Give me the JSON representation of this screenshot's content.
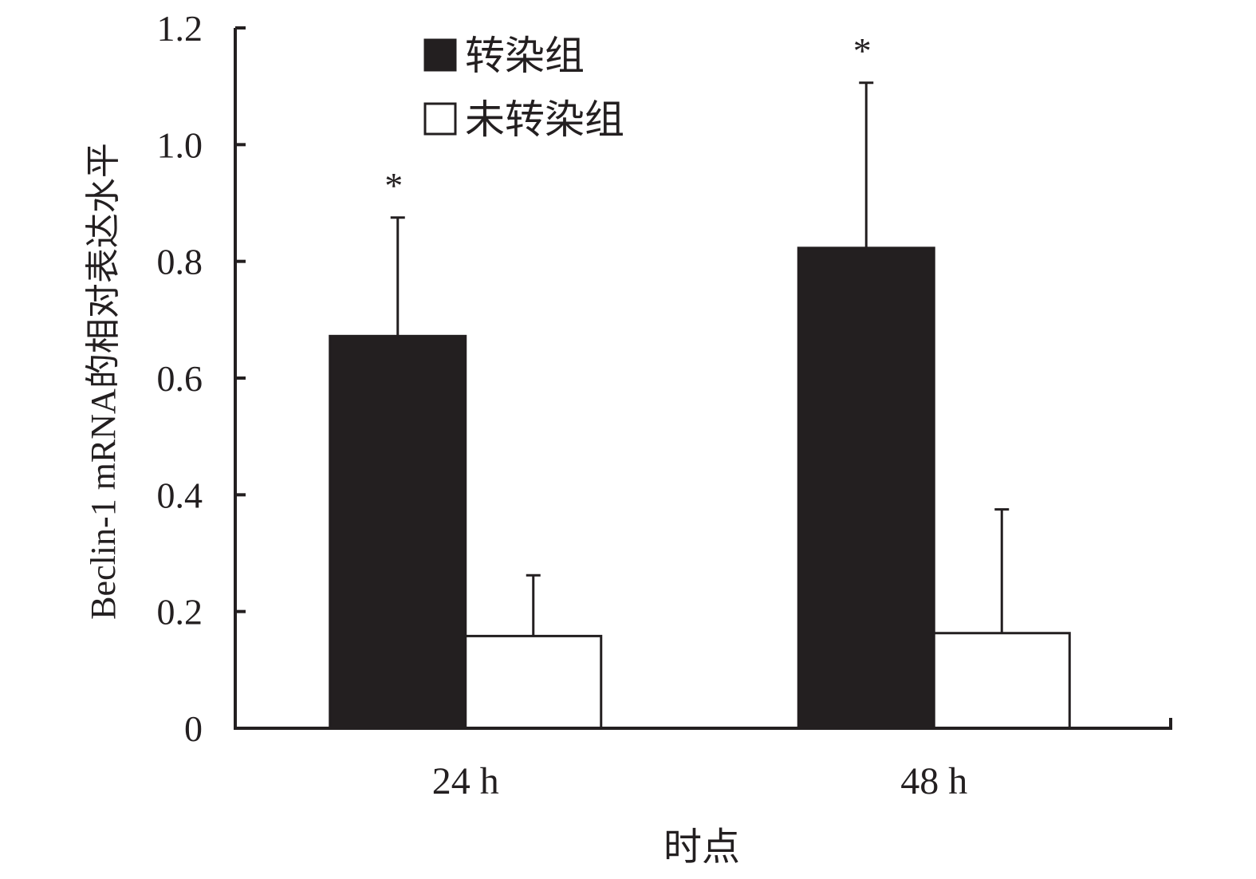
{
  "chart_data": {
    "type": "bar",
    "categories": [
      "24 h",
      "48 h"
    ],
    "series": [
      {
        "name": "转染组",
        "values": [
          0.672,
          0.823
        ],
        "errors": [
          0.203,
          0.283
        ],
        "color": "#231f20",
        "marker": "*"
      },
      {
        "name": "未转染组",
        "values": [
          0.158,
          0.163
        ],
        "errors": [
          0.104,
          0.212
        ],
        "color": "#ffffff",
        "marker": ""
      }
    ],
    "xlabel": "时点",
    "ylabel": "Beclin-1 mRNA的相对表达水平",
    "ylim": [
      0,
      1.2
    ],
    "yticks": [
      "0",
      "0.2",
      "0.4",
      "0.6",
      "0.8",
      "1.0",
      "1.2"
    ],
    "legend_position": "top-left",
    "grid": false
  }
}
